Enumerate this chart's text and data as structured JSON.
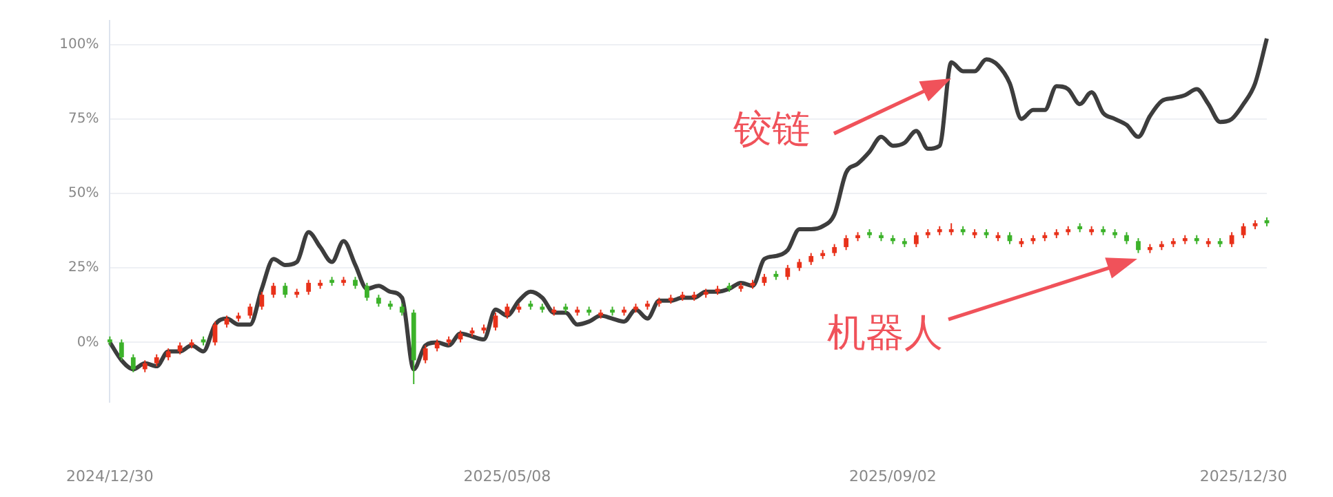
{
  "chart_data": {
    "type": "line",
    "categories": [
      "2024/12/30",
      null,
      null,
      null,
      null,
      null,
      null,
      null,
      null,
      null,
      null,
      null,
      null,
      null,
      null,
      null,
      null,
      null,
      null,
      null,
      null,
      null,
      null,
      null,
      null,
      null,
      null,
      null,
      null,
      null,
      null,
      null,
      null,
      null,
      "2025/05/08",
      null,
      null,
      null,
      null,
      null,
      null,
      null,
      null,
      null,
      null,
      null,
      null,
      null,
      null,
      null,
      null,
      null,
      null,
      null,
      null,
      null,
      null,
      null,
      null,
      null,
      null,
      null,
      null,
      null,
      null,
      null,
      null,
      "2025/09/02",
      null,
      null,
      null,
      null,
      null,
      null,
      null,
      null,
      null,
      null,
      null,
      null,
      null,
      null,
      null,
      null,
      null,
      null,
      null,
      null,
      null,
      null,
      null,
      null,
      null,
      null,
      null,
      null,
      null,
      "2025/12/30",
      null,
      null
    ],
    "ylim": [
      -20,
      108
    ],
    "yticks": [
      {
        "value": 0,
        "label": "0%"
      },
      {
        "value": 25,
        "label": "25%"
      },
      {
        "value": 50,
        "label": "50%"
      },
      {
        "value": 75,
        "label": "75%"
      },
      {
        "value": 100,
        "label": "100%"
      }
    ],
    "grid": "y",
    "legend": false,
    "series": [
      {
        "name": "铰链",
        "color": "#3d3d3d",
        "values": [
          0,
          -6,
          -9,
          -7,
          -8,
          -3,
          -3,
          -1,
          -3,
          6,
          8,
          6,
          6,
          18,
          28,
          26,
          27,
          37,
          32,
          27,
          34,
          26,
          18,
          19,
          17,
          15,
          -9,
          -1,
          0,
          -1,
          3,
          2,
          1,
          11,
          9,
          14,
          17,
          15,
          10,
          10,
          6,
          7,
          9,
          8,
          7,
          11,
          8,
          14,
          14,
          15,
          15,
          17,
          17,
          18,
          20,
          19,
          28,
          29,
          31,
          38,
          38,
          39,
          43,
          57,
          60,
          64,
          69,
          66,
          67,
          71,
          65,
          66,
          94,
          91,
          91,
          95,
          93,
          87,
          75,
          78,
          78,
          86,
          85,
          80,
          84,
          77,
          75,
          73,
          69,
          76,
          81,
          82,
          83,
          85,
          80,
          74,
          75,
          80,
          87,
          102
        ]
      },
      {
        "name": "机器人",
        "type": "candlestick",
        "ohlc": [
          [
            1,
            2,
            -1,
            0
          ],
          [
            0,
            1,
            -6,
            -5
          ],
          [
            -5,
            -4,
            -10,
            -9
          ],
          [
            -9,
            -6,
            -10,
            -7
          ],
          [
            -7,
            -4,
            -8,
            -5
          ],
          [
            -5,
            -2,
            -6,
            -3
          ],
          [
            -3,
            0,
            -4,
            -1
          ],
          [
            -1,
            1,
            -2,
            0
          ],
          [
            1,
            2,
            -1,
            0
          ],
          [
            0,
            7,
            -1,
            6
          ],
          [
            6,
            9,
            5,
            8
          ],
          [
            8,
            10,
            7,
            9
          ],
          [
            9,
            13,
            8,
            12
          ],
          [
            12,
            17,
            11,
            16
          ],
          [
            16,
            20,
            15,
            19
          ],
          [
            19,
            20,
            15,
            16
          ],
          [
            16,
            18,
            15,
            17
          ],
          [
            17,
            21,
            16,
            20
          ],
          [
            19,
            21,
            18,
            20
          ],
          [
            21,
            22,
            19,
            20
          ],
          [
            20,
            22,
            19,
            21
          ],
          [
            21,
            22,
            18,
            19
          ],
          [
            19,
            20,
            14,
            15
          ],
          [
            15,
            16,
            12,
            13
          ],
          [
            13,
            14,
            11,
            12
          ],
          [
            12,
            13,
            9,
            10
          ],
          [
            10,
            11,
            -14,
            -6
          ],
          [
            -6,
            -1,
            -7,
            -2
          ],
          [
            -2,
            1,
            -3,
            0
          ],
          [
            0,
            2,
            -1,
            1
          ],
          [
            1,
            4,
            0,
            3
          ],
          [
            3,
            5,
            2,
            4
          ],
          [
            4,
            6,
            3,
            5
          ],
          [
            5,
            10,
            4,
            9
          ],
          [
            9,
            13,
            8,
            12
          ],
          [
            11,
            13,
            10,
            12
          ],
          [
            13,
            14,
            11,
            12
          ],
          [
            12,
            13,
            10,
            11
          ],
          [
            10,
            12,
            9,
            11
          ],
          [
            12,
            13,
            10,
            11
          ],
          [
            10,
            12,
            9,
            11
          ],
          [
            11,
            12,
            9,
            10
          ],
          [
            9,
            11,
            8,
            10
          ],
          [
            11,
            12,
            9,
            10
          ],
          [
            10,
            12,
            9,
            11
          ],
          [
            11,
            13,
            10,
            12
          ],
          [
            12,
            14,
            11,
            13
          ],
          [
            13,
            15,
            12,
            14
          ],
          [
            14,
            16,
            13,
            15
          ],
          [
            15,
            17,
            14,
            16
          ],
          [
            15,
            17,
            14,
            16
          ],
          [
            16,
            18,
            15,
            17
          ],
          [
            17,
            19,
            16,
            18
          ],
          [
            19,
            20,
            17,
            18
          ],
          [
            18,
            20,
            17,
            19
          ],
          [
            19,
            21,
            18,
            20
          ],
          [
            20,
            23,
            19,
            22
          ],
          [
            23,
            24,
            21,
            22
          ],
          [
            22,
            26,
            21,
            25
          ],
          [
            25,
            28,
            24,
            27
          ],
          [
            27,
            30,
            26,
            29
          ],
          [
            29,
            31,
            28,
            30
          ],
          [
            30,
            33,
            29,
            32
          ],
          [
            32,
            36,
            31,
            35
          ],
          [
            35,
            37,
            34,
            36
          ],
          [
            37,
            38,
            35,
            36
          ],
          [
            36,
            37,
            34,
            35
          ],
          [
            35,
            36,
            33,
            34
          ],
          [
            34,
            35,
            32,
            33
          ],
          [
            33,
            37,
            32,
            36
          ],
          [
            36,
            38,
            35,
            37
          ],
          [
            37,
            39,
            36,
            38
          ],
          [
            37,
            40,
            36,
            38
          ],
          [
            38,
            39,
            36,
            37
          ],
          [
            36,
            38,
            35,
            37
          ],
          [
            37,
            38,
            35,
            36
          ],
          [
            35,
            37,
            34,
            36
          ],
          [
            36,
            37,
            33,
            34
          ],
          [
            33,
            35,
            32,
            34
          ],
          [
            34,
            36,
            33,
            35
          ],
          [
            35,
            37,
            34,
            36
          ],
          [
            36,
            38,
            35,
            37
          ],
          [
            37,
            39,
            36,
            38
          ],
          [
            39,
            40,
            37,
            38
          ],
          [
            37,
            39,
            36,
            38
          ],
          [
            38,
            39,
            36,
            37
          ],
          [
            37,
            38,
            35,
            36
          ],
          [
            36,
            37,
            33,
            34
          ],
          [
            34,
            35,
            30,
            31
          ],
          [
            31,
            33,
            30,
            32
          ],
          [
            32,
            34,
            31,
            33
          ],
          [
            33,
            35,
            32,
            34
          ],
          [
            34,
            36,
            33,
            35
          ],
          [
            35,
            36,
            33,
            34
          ],
          [
            33,
            35,
            32,
            34
          ],
          [
            34,
            35,
            32,
            33
          ],
          [
            33,
            37,
            32,
            36
          ],
          [
            36,
            40,
            35,
            39
          ],
          [
            39,
            41,
            38,
            40
          ],
          [
            41,
            42,
            39,
            40
          ]
        ]
      }
    ]
  }
}
